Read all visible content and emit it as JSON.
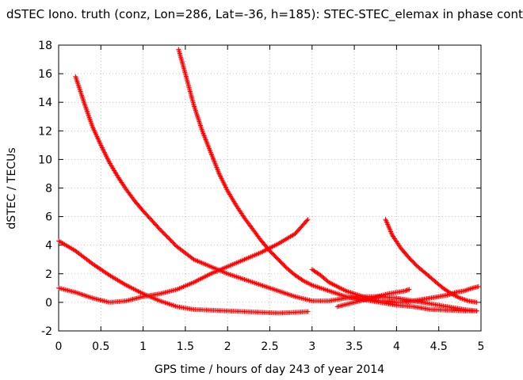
{
  "chart_data": {
    "type": "scatter",
    "title": "dSTEC Iono. truth (conz, Lon=286, Lat=-36, h=185): STEC-STEC_elemax in phase cont",
    "xlabel": "GPS time / hours of day 243 of year 2014",
    "ylabel": "dSTEC  / TECUs",
    "xlim": [
      0,
      5
    ],
    "ylim": [
      -2,
      18
    ],
    "xticks": [
      "0",
      "0.5",
      "1",
      "1.5",
      "2",
      "2.5",
      "3",
      "3.5",
      "4",
      "4.5",
      "5"
    ],
    "yticks": [
      "-2",
      "0",
      "2",
      "4",
      "6",
      "8",
      "10",
      "12",
      "14",
      "16",
      "18"
    ],
    "grid": true,
    "legend": "none",
    "marker": "+",
    "color": "#ff0000",
    "series": [
      {
        "x": [
          0.0,
          0.2,
          0.4,
          0.6,
          0.8,
          1.0,
          1.2,
          1.4,
          1.6,
          1.8,
          2.0,
          2.2,
          2.4,
          2.6,
          2.8,
          2.95
        ],
        "y": [
          4.3,
          3.6,
          2.7,
          1.9,
          1.2,
          0.6,
          0.1,
          -0.3,
          -0.5,
          -0.55,
          -0.6,
          -0.65,
          -0.7,
          -0.75,
          -0.7,
          -0.65
        ]
      },
      {
        "x": [
          0.0,
          0.2,
          0.4,
          0.6,
          0.8,
          1.0,
          1.2,
          1.4,
          1.6,
          1.8,
          2.0,
          2.2,
          2.4,
          2.6,
          2.8,
          2.95
        ],
        "y": [
          1.0,
          0.7,
          0.3,
          0.0,
          0.1,
          0.4,
          0.6,
          0.9,
          1.4,
          2.0,
          2.5,
          3.0,
          3.5,
          4.1,
          4.8,
          5.8
        ]
      },
      {
        "x": [
          0.2,
          0.3,
          0.4,
          0.5,
          0.6,
          0.7,
          0.8,
          0.9,
          1.0,
          1.2,
          1.4,
          1.6,
          1.8,
          2.0,
          2.2,
          2.4,
          2.6,
          2.8,
          3.0,
          3.2,
          3.4,
          3.6,
          3.8,
          4.0,
          4.2,
          4.4,
          4.6,
          4.8,
          4.95
        ],
        "y": [
          15.8,
          14.0,
          12.3,
          11.0,
          9.8,
          8.8,
          7.9,
          7.1,
          6.4,
          5.1,
          3.9,
          3.0,
          2.5,
          2.0,
          1.6,
          1.2,
          0.8,
          0.4,
          0.1,
          0.1,
          0.3,
          0.4,
          0.4,
          0.3,
          0.1,
          -0.1,
          -0.3,
          -0.5,
          -0.6
        ]
      },
      {
        "x": [
          1.42,
          1.5,
          1.6,
          1.7,
          1.8,
          1.9,
          2.0,
          2.1,
          2.2,
          2.3,
          2.4,
          2.5,
          2.6,
          2.7,
          2.8,
          2.9,
          3.0,
          3.2,
          3.4,
          3.6,
          3.8,
          4.0,
          4.2,
          4.4,
          4.6,
          4.8,
          4.95
        ],
        "y": [
          17.7,
          16.0,
          13.8,
          12.0,
          10.5,
          9.0,
          7.8,
          6.8,
          5.9,
          5.1,
          4.3,
          3.6,
          3.0,
          2.4,
          1.9,
          1.5,
          1.2,
          0.8,
          0.4,
          0.2,
          0.0,
          -0.2,
          -0.3,
          -0.5,
          -0.55,
          -0.6,
          -0.6
        ]
      },
      {
        "x": [
          3.0,
          3.1,
          3.2,
          3.3,
          3.4,
          3.5,
          3.6,
          3.7,
          3.8,
          3.9,
          4.0,
          4.1,
          4.2,
          4.3,
          4.4,
          4.5,
          4.6,
          4.7,
          4.8,
          4.9,
          4.97
        ],
        "y": [
          2.3,
          1.9,
          1.4,
          1.1,
          0.8,
          0.6,
          0.4,
          0.2,
          0.1,
          0.1,
          0.0,
          0.0,
          0.1,
          0.2,
          0.3,
          0.4,
          0.5,
          0.7,
          0.8,
          1.0,
          1.1
        ]
      },
      {
        "x": [
          3.3,
          3.5,
          3.7,
          3.9,
          4.1,
          4.15
        ],
        "y": [
          -0.3,
          0.0,
          0.3,
          0.6,
          0.8,
          0.9
        ]
      },
      {
        "x": [
          3.87,
          3.95,
          4.05,
          4.15,
          4.25,
          4.35,
          4.45,
          4.55,
          4.65,
          4.75,
          4.85,
          4.95
        ],
        "y": [
          5.8,
          4.7,
          3.8,
          3.1,
          2.5,
          2.0,
          1.5,
          1.0,
          0.6,
          0.3,
          0.1,
          0.0
        ]
      }
    ]
  }
}
